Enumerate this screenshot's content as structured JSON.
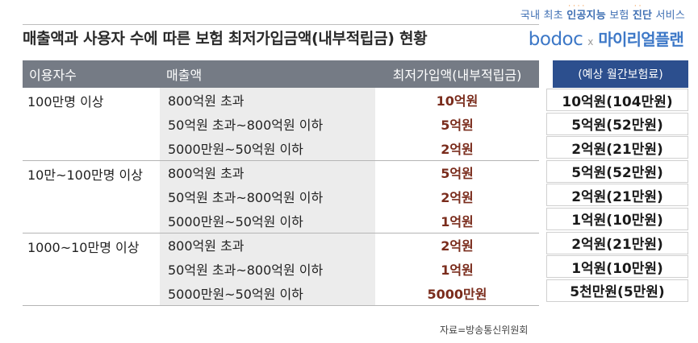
{
  "tagline": {
    "p1": "국내 최초 ",
    "p2": "인공지능",
    "p3": " 보험 ",
    "p4": "진단",
    "p5": " 서비스"
  },
  "title": "매출액과 사용자 수에 따른 보험 최저가입금액(내부적립금) 현황",
  "logo": {
    "brand1": "bodoc",
    "x": "x",
    "brand2": "마이리얼플랜"
  },
  "table": {
    "headers": [
      "이용자수",
      "매출액",
      "최저가입액(내부적립금)"
    ],
    "rows": [
      {
        "users": "100만명 이상",
        "revenue": "800억원 초과",
        "min": "10억원"
      },
      {
        "users": "",
        "revenue": "50억원 초과~800억원 이하",
        "min": "5억원"
      },
      {
        "users": "",
        "revenue": "5000만원~50억원 이하",
        "min": "2억원"
      },
      {
        "users": "10만~100만명 이상",
        "revenue": "800억원 초과",
        "min": "5억원"
      },
      {
        "users": "",
        "revenue": "50억원 초과~800억원 이하",
        "min": "2억원"
      },
      {
        "users": "",
        "revenue": "5000만원~50억원 이하",
        "min": "1억원"
      },
      {
        "users": "1000~10만명 이상",
        "revenue": "800억원 초과",
        "min": "2억원"
      },
      {
        "users": "",
        "revenue": "50억원 초과~800억원 이하",
        "min": "1억원"
      },
      {
        "users": "",
        "revenue": "5000만원~50억원 이하",
        "min": "5000만원"
      }
    ]
  },
  "premium": {
    "header": "(예상 월간보험료)",
    "values": [
      "10억원(104만원)",
      "5억원(52만원)",
      "2억원(21만원)",
      "5억원(52만원)",
      "2억원(21만원)",
      "1억원(10만원)",
      "2억원(21만원)",
      "1억원(10만원)",
      "5천만원(5만원)"
    ]
  },
  "source": "자료=방송통신위원회",
  "colors": {
    "header_gray": "#757b85",
    "header_blue": "#2c4f8e",
    "value_red": "#7a2c1c",
    "brand_blue": "#3d78c7",
    "dot_orange": "#f08a2c"
  }
}
